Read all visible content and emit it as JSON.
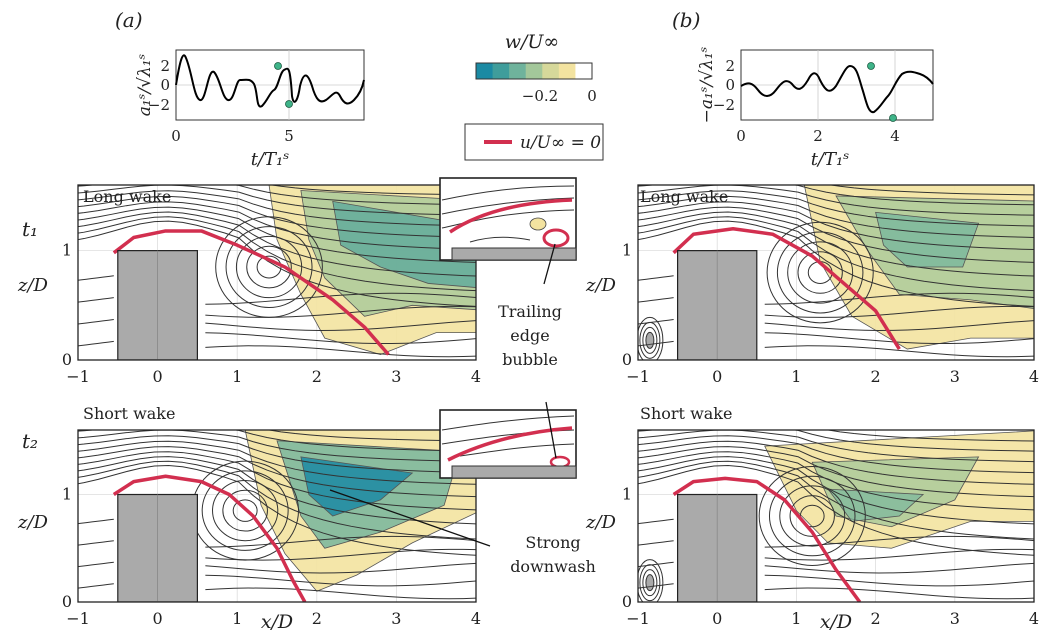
{
  "panels": {
    "a_label": "(a)",
    "b_label": "(b)"
  },
  "timeseries_a": {
    "ylabel": "a₁ˢ/√λ₁ˢ",
    "xlabel": "t/T₁ˢ",
    "yticks": [
      "2",
      "0",
      "−2"
    ],
    "xticks": [
      "0",
      "5"
    ]
  },
  "timeseries_b": {
    "ylabel": "−a₁ˢ/√λ₁ˢ",
    "xlabel": "t/T₁ˢ",
    "yticks": [
      "2",
      "0",
      "−2"
    ],
    "xticks": [
      "0",
      "2",
      "4"
    ]
  },
  "colorbar": {
    "title": "w/U∞",
    "ticks": [
      "−0.2",
      "0"
    ],
    "colors": [
      "#1b8aa3",
      "#3f9d9b",
      "#6fb39c",
      "#a3c79a",
      "#d6d89a",
      "#f3e3a0",
      "#ffffff"
    ]
  },
  "legend": {
    "label": "u/U∞ = 0",
    "color": "#d22f4f"
  },
  "rows": {
    "t1_label": "t₁",
    "t2_label": "t₂",
    "long_wake": "Long wake",
    "short_wake": "Short wake"
  },
  "flowfield": {
    "ylabel": "z/D",
    "xlabel": "x/D",
    "xticks": [
      "−1",
      "0",
      "1",
      "2",
      "3",
      "4"
    ],
    "yticks": [
      "0",
      "1"
    ]
  },
  "annotations": {
    "trailing_1": "Trailing",
    "trailing_2": "edge",
    "trailing_3": "bubble",
    "strong_1": "Strong",
    "strong_2": "downwash"
  },
  "colors": {
    "block": "#aaaaaa",
    "streamline": "#333333",
    "zero_contour": "#d22f4f",
    "marker": "#3fb489"
  }
}
